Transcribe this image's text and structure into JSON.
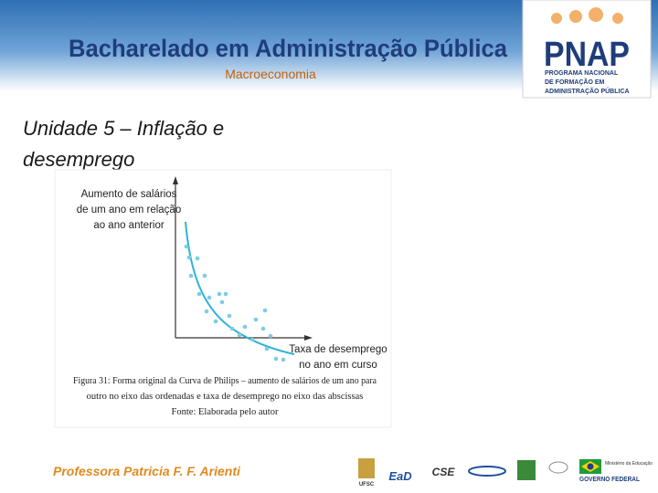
{
  "header": {
    "title": "Bacharelado em Administração Pública",
    "subtitle": "Macroeconomia",
    "logo": {
      "name": "PNAP",
      "lines": [
        "PROGRAMA NACIONAL",
        "DE FORMAÇÃO EM",
        "ADMINISTRAÇÃO PÚBLICA"
      ]
    }
  },
  "slide": {
    "heading_lines": [
      "Unidade 5 – Inflação e",
      "desemprego"
    ]
  },
  "figure": {
    "y_axis_label_lines": [
      "Aumento de salários",
      "de um ano em relação",
      "ao ano anterior"
    ],
    "x_axis_label_lines": [
      "Taxa de desemprego",
      "no ano em curso"
    ],
    "caption_lines": [
      "Figura 31: Forma original da Curva de Philips – aumento de salários de um ano para",
      "outro no eixo das ordenadas e taxa de desemprego no eixo das abscissas"
    ],
    "source": "Fonte:  Elaborada pelo autor"
  },
  "footer": {
    "author": "Professora Patricia F. F. Arienti",
    "logos": [
      "UFSC",
      "EaD",
      "CSE",
      "Ministério da Educação",
      "GOVERNO FEDERAL"
    ]
  }
}
